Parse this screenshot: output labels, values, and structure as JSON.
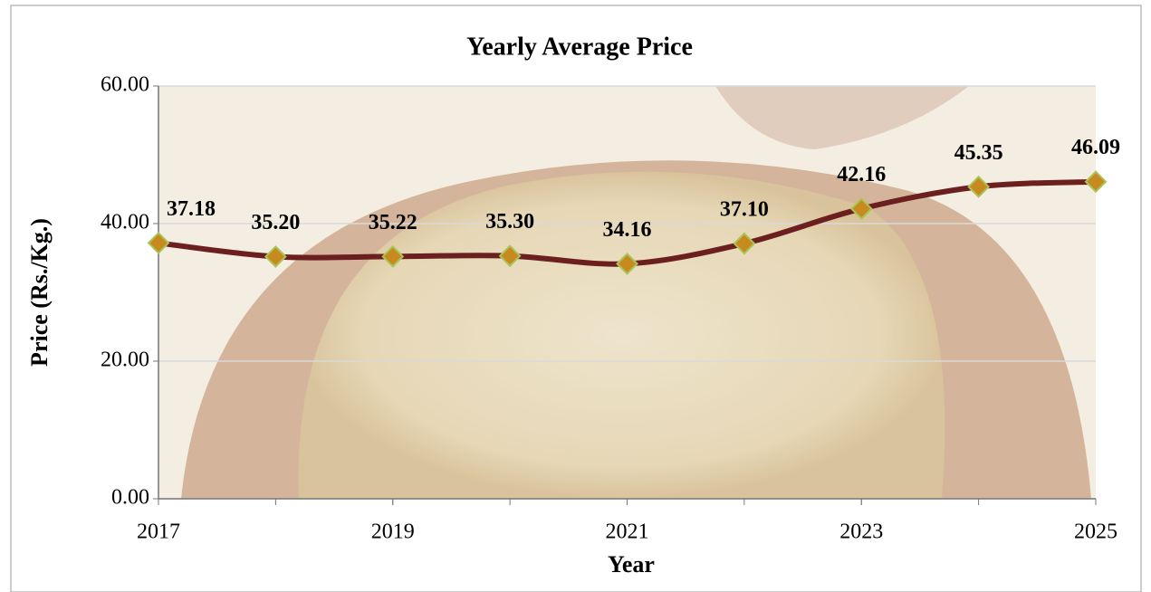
{
  "chart_data": {
    "type": "line",
    "title": "Yearly Average Price",
    "x_label": "Year",
    "y_label": "Price (Rs./Kg.)",
    "x": [
      2017,
      2018,
      2019,
      2020,
      2021,
      2022,
      2023,
      2024,
      2025
    ],
    "series": [
      {
        "color": "#6b1f1f",
        "values": [
          37.18,
          35.2,
          35.22,
          35.3,
          34.16,
          37.1,
          42.16,
          45.35,
          46.09
        ],
        "value_labels": [
          "37.18",
          "35.20",
          "35.22",
          "35.30",
          "34.16",
          "37.10",
          "42.16",
          "45.35",
          "46.09"
        ]
      }
    ],
    "xlim": [
      2017,
      2025
    ],
    "xticks": [
      2017,
      2019,
      2021,
      2023,
      2025
    ],
    "ylim": [
      0,
      60
    ],
    "yticks": [
      {
        "value": 0,
        "label": "0.00"
      },
      {
        "value": 20,
        "label": "20.00"
      },
      {
        "value": 40,
        "label": "40.00"
      },
      {
        "value": 60,
        "label": "60.00"
      }
    ],
    "grid": true
  }
}
